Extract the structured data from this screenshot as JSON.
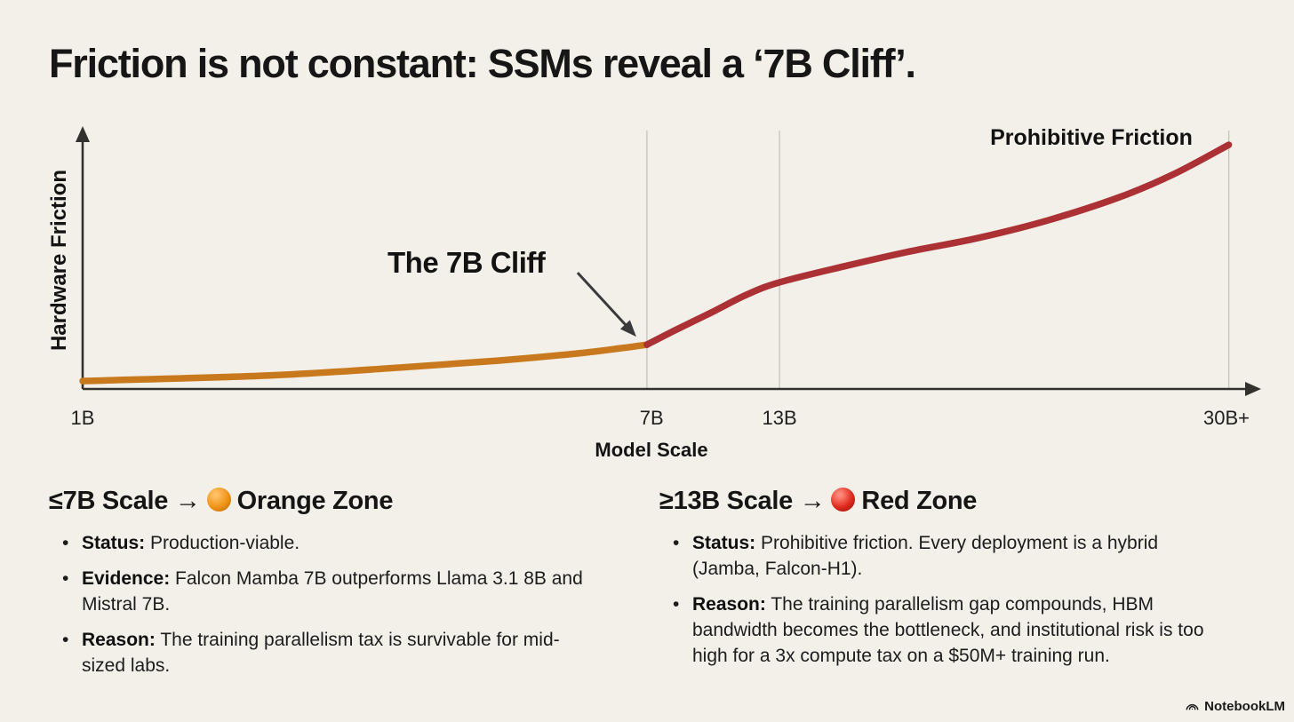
{
  "slide": {
    "title": "Friction is not constant: SSMs reveal a ‘7B Cliff’.",
    "footer_brand": "NotebookLM"
  },
  "chart_data": {
    "type": "line",
    "title": "",
    "xlabel": "Model Scale",
    "ylabel": "Hardware Friction",
    "x_ticks": [
      {
        "label": "1B",
        "pos": 0.0
      },
      {
        "label": "7B",
        "pos": 0.485
      },
      {
        "label": "13B",
        "pos": 0.594
      },
      {
        "label": "30B+",
        "pos": 0.975
      }
    ],
    "gridline_positions": [
      0.481,
      0.594,
      0.977
    ],
    "grid_on": true,
    "axis_color": "#33312d",
    "grid_color": "#c9c6be",
    "x_range_note": "non-linear conceptual scale from 1B to 30B+ parameters",
    "y_range": [
      0,
      1
    ],
    "series": [
      {
        "name": "orange-zone-friction",
        "color": "#C9791D",
        "points": [
          [
            0.0,
            0.031
          ],
          [
            0.157,
            0.052
          ],
          [
            0.27,
            0.083
          ],
          [
            0.354,
            0.11
          ],
          [
            0.422,
            0.138
          ],
          [
            0.46,
            0.159
          ],
          [
            0.481,
            0.172
          ]
        ]
      },
      {
        "name": "red-zone-friction",
        "color": "#AC3134",
        "points": [
          [
            0.481,
            0.172
          ],
          [
            0.505,
            0.228
          ],
          [
            0.536,
            0.297
          ],
          [
            0.566,
            0.366
          ],
          [
            0.594,
            0.414
          ],
          [
            0.649,
            0.476
          ],
          [
            0.702,
            0.531
          ],
          [
            0.763,
            0.586
          ],
          [
            0.823,
            0.655
          ],
          [
            0.884,
            0.745
          ],
          [
            0.93,
            0.834
          ],
          [
            0.977,
            0.948
          ]
        ]
      }
    ],
    "annotations": [
      {
        "id": "cliff",
        "text": "The 7B Cliff",
        "arrow_to": {
          "x": 0.481,
          "y": 0.172
        }
      },
      {
        "id": "prohibitive",
        "text": "Prohibitive Friction",
        "position": "upper-right"
      }
    ]
  },
  "zones": [
    {
      "heading_prefix": "≤7B Scale →",
      "zone_label": "Orange Zone",
      "dot_colors": [
        "#ffc066",
        "#ef9417",
        "#c06a04"
      ],
      "bullets": [
        {
          "label": "Status:",
          "text": "Production-viable."
        },
        {
          "label": "Evidence:",
          "text": "Falcon Mamba 7B outperforms Llama 3.1 8B and Mistral 7B."
        },
        {
          "label": "Reason:",
          "text": "The training parallelism tax is survivable for mid-sized labs."
        }
      ]
    },
    {
      "heading_prefix": "≥13B Scale →",
      "zone_label": "Red Zone",
      "dot_colors": [
        "#ff8a7a",
        "#e02b1e",
        "#9a0f08"
      ],
      "bullets": [
        {
          "label": "Status:",
          "text": "Prohibitive friction. Every deployment is a hybrid (Jamba, Falcon-H1)."
        },
        {
          "label": "Reason:",
          "text": "The training parallelism gap compounds, HBM bandwidth becomes the bottleneck, and institutional risk is too high for a 3x compute tax on a $50M+ training run."
        }
      ]
    }
  ]
}
